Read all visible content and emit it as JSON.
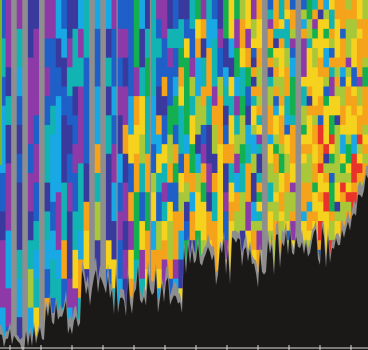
{
  "chart_data": {
    "type": "heatmap",
    "title": "",
    "xlabel": "",
    "ylabel": "",
    "grid": false,
    "legend": "none",
    "colors": {
      "background": "#1b1818",
      "gray": "#8e8e8e",
      "navy": "#3a3a9e",
      "blue": "#1f5fc8",
      "sky": "#19a8e6",
      "teal": "#12b3b3",
      "purple": "#8d3aa8",
      "green": "#14b04f",
      "lime": "#a8c83a",
      "yellow": "#f5d21e",
      "orange": "#f5a31a",
      "red": "#e8322a",
      "axis": "#dcdcdc",
      "left_strip": "#7fb32a"
    },
    "palette_order": [
      "navy",
      "blue",
      "sky",
      "teal",
      "purple",
      "green",
      "lime",
      "yellow",
      "orange",
      "red"
    ],
    "separator_columns": [
      2,
      4,
      7,
      16,
      18,
      47,
      53
    ],
    "divider_columns": [
      21,
      27
    ],
    "columns": 66,
    "rows": 36
  }
}
